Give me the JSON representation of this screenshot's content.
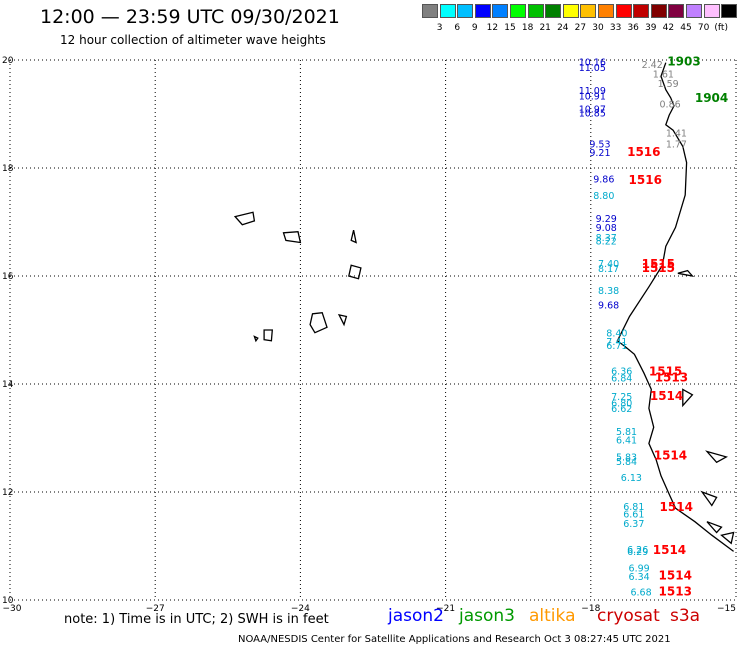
{
  "header": {
    "title": "12:00 — 23:59 UTC 09/30/2021",
    "subtitle": "12 hour collection of altimeter wave heights"
  },
  "scale": {
    "colors": [
      "#808080",
      "#00ffff",
      "#00bfff",
      "#0000ff",
      "#0080ff",
      "#00ff00",
      "#00c000",
      "#008000",
      "#ffff00",
      "#ffc000",
      "#ff8000",
      "#ff0000",
      "#c00000",
      "#800000",
      "#800040",
      "#c080ff",
      "#ffc0ff",
      "#000000"
    ],
    "ticks": [
      "3",
      "6",
      "9",
      "12",
      "15",
      "18",
      "21",
      "24",
      "27",
      "30",
      "33",
      "36",
      "39",
      "42",
      "45",
      "70",
      "(ft)"
    ]
  },
  "axes": {
    "x_ticks": [
      {
        "value": -30,
        "label": "−30"
      },
      {
        "value": -27,
        "label": "−27"
      },
      {
        "value": -24,
        "label": "−24"
      },
      {
        "value": -21,
        "label": "−21"
      },
      {
        "value": -18,
        "label": "−18"
      },
      {
        "value": -15,
        "label": "−15"
      }
    ],
    "y_ticks": [
      {
        "value": 20,
        "label": "20"
      },
      {
        "value": 18,
        "label": "18"
      },
      {
        "value": 16,
        "label": "16"
      },
      {
        "value": 14,
        "label": "14"
      },
      {
        "value": 12,
        "label": "12"
      },
      {
        "value": 10,
        "label": "10"
      }
    ],
    "lon_range": [
      -30,
      -15
    ],
    "lat_range": [
      10,
      20
    ]
  },
  "wave_heights": [
    {
      "text": "10.16",
      "lon": -18.25,
      "lat": 19.9,
      "color": "#0000cc"
    },
    {
      "text": "11.05",
      "lon": -18.25,
      "lat": 19.8,
      "color": "#0000cc"
    },
    {
      "text": "11.09",
      "lon": -18.25,
      "lat": 19.37,
      "color": "#0000cc"
    },
    {
      "text": "10.91",
      "lon": -18.25,
      "lat": 19.27,
      "color": "#0000cc"
    },
    {
      "text": "10.97",
      "lon": -18.25,
      "lat": 19.03,
      "color": "#0000cc"
    },
    {
      "text": "10.85",
      "lon": -18.25,
      "lat": 18.95,
      "color": "#0000cc"
    },
    {
      "text": "9.53",
      "lon": -18.03,
      "lat": 18.38,
      "color": "#0000cc"
    },
    {
      "text": "9.21",
      "lon": -18.03,
      "lat": 18.22,
      "color": "#0000cc"
    },
    {
      "text": "9.86",
      "lon": -17.95,
      "lat": 17.73,
      "color": "#0000cc"
    },
    {
      "text": "8.80",
      "lon": -17.95,
      "lat": 17.43,
      "color": "#00aacc"
    },
    {
      "text": "9.29",
      "lon": -17.9,
      "lat": 17.0,
      "color": "#0000cc"
    },
    {
      "text": "9.08",
      "lon": -17.9,
      "lat": 16.83,
      "color": "#0000cc"
    },
    {
      "text": "8.37",
      "lon": -17.9,
      "lat": 16.65,
      "color": "#00aacc"
    },
    {
      "text": "8.22",
      "lon": -17.9,
      "lat": 16.58,
      "color": "#00aacc"
    },
    {
      "text": "7.40",
      "lon": -17.85,
      "lat": 16.17,
      "color": "#00aacc"
    },
    {
      "text": "8.17",
      "lon": -17.85,
      "lat": 16.07,
      "color": "#00aacc"
    },
    {
      "text": "8.38",
      "lon": -17.85,
      "lat": 15.67,
      "color": "#00aacc"
    },
    {
      "text": "9.68",
      "lon": -17.85,
      "lat": 15.4,
      "color": "#0000cc"
    },
    {
      "text": "8.40",
      "lon": -17.68,
      "lat": 14.88,
      "color": "#00aacc"
    },
    {
      "text": "7.41",
      "lon": -17.68,
      "lat": 14.72,
      "color": "#00aacc"
    },
    {
      "text": "6.71",
      "lon": -17.68,
      "lat": 14.65,
      "color": "#00aacc"
    },
    {
      "text": "6.36",
      "lon": -17.58,
      "lat": 14.18,
      "color": "#00aacc"
    },
    {
      "text": "6.84",
      "lon": -17.58,
      "lat": 14.05,
      "color": "#00aacc"
    },
    {
      "text": "7.25",
      "lon": -17.58,
      "lat": 13.7,
      "color": "#00aacc"
    },
    {
      "text": "6.80",
      "lon": -17.58,
      "lat": 13.58,
      "color": "#00aacc"
    },
    {
      "text": "6.62",
      "lon": -17.58,
      "lat": 13.48,
      "color": "#00aacc"
    },
    {
      "text": "5.81",
      "lon": -17.48,
      "lat": 13.06,
      "color": "#00aacc"
    },
    {
      "text": "6.41",
      "lon": -17.48,
      "lat": 12.9,
      "color": "#00aacc"
    },
    {
      "text": "5.83",
      "lon": -17.48,
      "lat": 12.58,
      "color": "#00aacc"
    },
    {
      "text": "5.84",
      "lon": -17.48,
      "lat": 12.5,
      "color": "#00aacc"
    },
    {
      "text": "6.13",
      "lon": -17.38,
      "lat": 12.2,
      "color": "#00aacc"
    },
    {
      "text": "6.81",
      "lon": -17.33,
      "lat": 11.67,
      "color": "#00aacc"
    },
    {
      "text": "6.61",
      "lon": -17.33,
      "lat": 11.53,
      "color": "#00aacc"
    },
    {
      "text": "6.37",
      "lon": -17.33,
      "lat": 11.35,
      "color": "#00aacc"
    },
    {
      "text": "6.26",
      "lon": -17.25,
      "lat": 10.87,
      "color": "#00aacc"
    },
    {
      "text": "6.29",
      "lon": -17.25,
      "lat": 10.83,
      "color": "#00aacc"
    },
    {
      "text": "6.99",
      "lon": -17.22,
      "lat": 10.53,
      "color": "#00aacc"
    },
    {
      "text": "6.34",
      "lon": -17.22,
      "lat": 10.37,
      "color": "#00aacc"
    },
    {
      "text": "6.68",
      "lon": -17.18,
      "lat": 10.08,
      "color": "#00aacc"
    },
    {
      "text": "2.42",
      "lon": -16.95,
      "lat": 19.85,
      "color": "#808080"
    },
    {
      "text": "1.61",
      "lon": -16.72,
      "lat": 19.68,
      "color": "#808080"
    },
    {
      "text": "1.59",
      "lon": -16.62,
      "lat": 19.5,
      "color": "#808080"
    },
    {
      "text": "0.86",
      "lon": -16.58,
      "lat": 19.12,
      "color": "#808080"
    },
    {
      "text": "1.41",
      "lon": -16.45,
      "lat": 18.58,
      "color": "#808080"
    },
    {
      "text": "1.77",
      "lon": -16.45,
      "lat": 18.38,
      "color": "#808080"
    }
  ],
  "cyclone_labels": [
    {
      "text": "1903",
      "lon": -16.42,
      "lat": 19.9,
      "color": "#008000"
    },
    {
      "text": "1904",
      "lon": -15.85,
      "lat": 19.22,
      "color": "#008000"
    },
    {
      "text": "1516",
      "lon": -17.25,
      "lat": 18.22,
      "color": "#ff0000"
    },
    {
      "text": "1516",
      "lon": -17.22,
      "lat": 17.7,
      "color": "#ff0000"
    },
    {
      "text": "1515",
      "lon": -16.95,
      "lat": 16.15,
      "color": "#ff0000"
    },
    {
      "text": "1515",
      "lon": -16.95,
      "lat": 16.07,
      "color": "#ff0000"
    },
    {
      "text": "1515",
      "lon": -16.8,
      "lat": 14.16,
      "color": "#ff0000"
    },
    {
      "text": "1513",
      "lon": -16.68,
      "lat": 14.05,
      "color": "#ff0000"
    },
    {
      "text": "1514",
      "lon": -16.78,
      "lat": 13.7,
      "color": "#ff0000"
    },
    {
      "text": "1514",
      "lon": -16.7,
      "lat": 12.6,
      "color": "#ff0000"
    },
    {
      "text": "1514",
      "lon": -16.58,
      "lat": 11.65,
      "color": "#ff0000"
    },
    {
      "text": "1514",
      "lon": -16.72,
      "lat": 10.85,
      "color": "#ff0000"
    },
    {
      "text": "1514",
      "lon": -16.6,
      "lat": 10.38,
      "color": "#ff0000"
    },
    {
      "text": "1513",
      "lon": -16.6,
      "lat": 10.08,
      "color": "#ff0000"
    }
  ],
  "coastline": [
    [
      -16.45,
      19.95
    ],
    [
      -16.55,
      19.7
    ],
    [
      -16.45,
      19.45
    ],
    [
      -16.35,
      19.3
    ],
    [
      -16.28,
      19.15
    ],
    [
      -16.38,
      18.98
    ],
    [
      -16.45,
      18.8
    ],
    [
      -16.3,
      18.7
    ],
    [
      -16.1,
      18.4
    ],
    [
      -16.02,
      18.1
    ],
    [
      -16.05,
      17.5
    ],
    [
      -16.25,
      16.9
    ],
    [
      -16.45,
      16.55
    ],
    [
      -16.52,
      16.2
    ],
    [
      -16.8,
      15.8
    ],
    [
      -17.2,
      15.25
    ],
    [
      -17.45,
      14.8
    ],
    [
      -17.3,
      14.7
    ],
    [
      -17.1,
      14.55
    ],
    [
      -16.9,
      14.2
    ],
    [
      -16.75,
      13.9
    ],
    [
      -16.8,
      13.55
    ],
    [
      -16.7,
      13.2
    ],
    [
      -16.8,
      12.9
    ],
    [
      -16.65,
      12.6
    ],
    [
      -16.55,
      12.3
    ],
    [
      -16.4,
      12.0
    ],
    [
      -16.25,
      11.7
    ],
    [
      -15.85,
      11.45
    ],
    [
      -15.5,
      11.2
    ],
    [
      -15.05,
      10.9
    ]
  ],
  "islands": [
    [
      [
        -25.35,
        17.1
      ],
      [
        -24.98,
        17.18
      ],
      [
        -24.95,
        17.02
      ],
      [
        -25.2,
        16.95
      ],
      [
        -25.35,
        17.1
      ]
    ],
    [
      [
        -24.35,
        16.8
      ],
      [
        -24.05,
        16.82
      ],
      [
        -24.0,
        16.62
      ],
      [
        -24.3,
        16.66
      ],
      [
        -24.35,
        16.8
      ]
    ],
    [
      [
        -22.9,
        16.85
      ],
      [
        -22.85,
        16.62
      ],
      [
        -22.95,
        16.66
      ],
      [
        -22.9,
        16.85
      ]
    ],
    [
      [
        -22.95,
        16.2
      ],
      [
        -22.75,
        16.15
      ],
      [
        -22.8,
        15.95
      ],
      [
        -23.0,
        16.0
      ],
      [
        -22.95,
        16.2
      ]
    ],
    [
      [
        -23.75,
        15.3
      ],
      [
        -23.55,
        15.32
      ],
      [
        -23.45,
        15.05
      ],
      [
        -23.7,
        14.95
      ],
      [
        -23.8,
        15.1
      ],
      [
        -23.75,
        15.3
      ]
    ],
    [
      [
        -23.2,
        15.28
      ],
      [
        -23.05,
        15.25
      ],
      [
        -23.1,
        15.1
      ],
      [
        -23.2,
        15.28
      ]
    ],
    [
      [
        -24.75,
        15.0
      ],
      [
        -24.58,
        15.0
      ],
      [
        -24.6,
        14.8
      ],
      [
        -24.75,
        14.82
      ],
      [
        -24.75,
        15.0
      ]
    ],
    [
      [
        -24.95,
        14.88
      ],
      [
        -24.88,
        14.85
      ],
      [
        -24.92,
        14.8
      ],
      [
        -24.95,
        14.88
      ]
    ]
  ],
  "coast_features": [
    [
      [
        -16.2,
        16.05
      ],
      [
        -16.0,
        16.1
      ],
      [
        -15.9,
        16.0
      ],
      [
        -16.2,
        16.05
      ]
    ],
    [
      [
        -16.1,
        13.9
      ],
      [
        -15.9,
        13.8
      ],
      [
        -16.1,
        13.6
      ],
      [
        -16.1,
        13.9
      ]
    ],
    [
      [
        -15.7,
        12.0
      ],
      [
        -15.4,
        11.9
      ],
      [
        -15.5,
        11.75
      ],
      [
        -15.7,
        12.0
      ]
    ],
    [
      [
        -15.6,
        11.45
      ],
      [
        -15.3,
        11.35
      ],
      [
        -15.4,
        11.25
      ],
      [
        -15.6,
        11.45
      ]
    ],
    [
      [
        -15.3,
        11.2
      ],
      [
        -15.05,
        11.25
      ],
      [
        -15.1,
        11.05
      ],
      [
        -15.3,
        11.2
      ]
    ],
    [
      [
        -15.6,
        12.75
      ],
      [
        -15.2,
        12.65
      ],
      [
        -15.4,
        12.55
      ],
      [
        -15.6,
        12.75
      ]
    ]
  ],
  "legend": {
    "note": "note:  1) Time is in UTC;  2) SWH is in feet",
    "satellites": [
      {
        "name": "jason2",
        "color": "#0000ff"
      },
      {
        "name": "jason3",
        "color": "#009900"
      },
      {
        "name": "altika",
        "color": "#ff9900"
      },
      {
        "name": "cryosat",
        "color": "#cc0000"
      },
      {
        "name": "s3a",
        "color": "#cc0000"
      }
    ]
  },
  "footer": {
    "credit": "NOAA/NESDIS Center for Satellite Applications and Research    Oct  3 08:27:45 UTC 2021"
  }
}
